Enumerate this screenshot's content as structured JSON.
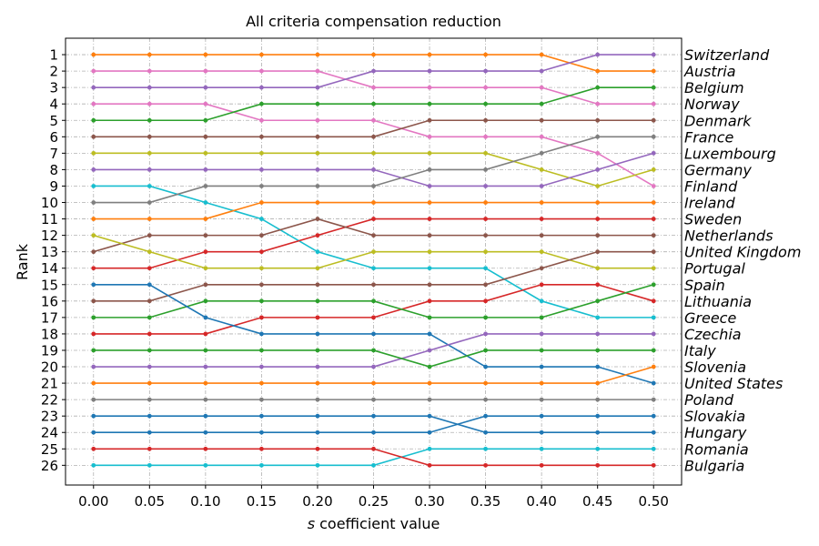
{
  "chart_data": {
    "type": "line",
    "title": "All criteria compensation reduction",
    "xlabel_italic": "s",
    "xlabel_rest": " coefficient value",
    "ylabel": "Rank",
    "x": [
      0.0,
      0.05,
      0.1,
      0.15,
      0.2,
      0.25,
      0.3,
      0.35,
      0.4,
      0.45,
      0.5
    ],
    "x_tick_labels": [
      "0.00",
      "0.05",
      "0.10",
      "0.15",
      "0.20",
      "0.25",
      "0.30",
      "0.35",
      "0.40",
      "0.45",
      "0.50"
    ],
    "y_ticks": [
      1,
      2,
      3,
      4,
      5,
      6,
      7,
      8,
      9,
      10,
      11,
      12,
      13,
      14,
      15,
      16,
      17,
      18,
      19,
      20,
      21,
      22,
      23,
      24,
      25,
      26
    ],
    "xlim": [
      -0.025,
      0.525
    ],
    "ylim": [
      27.2,
      0
    ],
    "grid": true,
    "label_ranks_at": 0.5,
    "series": [
      {
        "name": "Switzerland",
        "color": "#ff7f0e",
        "values": [
          1,
          1,
          1,
          1,
          1,
          1,
          1,
          1,
          1,
          2,
          2
        ]
      },
      {
        "name": "Austria",
        "color": "#e377c2",
        "values": [
          2,
          2,
          2,
          2,
          2,
          3,
          3,
          3,
          3,
          4,
          4
        ]
      },
      {
        "name": "Belgium",
        "color": "#9467bd",
        "values": [
          3,
          3,
          3,
          3,
          3,
          2,
          2,
          2,
          2,
          1,
          1
        ]
      },
      {
        "name": "Norway",
        "color": "#e377c2",
        "values": [
          4,
          4,
          4,
          5,
          5,
          5,
          6,
          6,
          6,
          7,
          9
        ]
      },
      {
        "name": "Denmark",
        "color": "#2ca02c",
        "values": [
          5,
          5,
          5,
          4,
          4,
          4,
          4,
          4,
          4,
          3,
          3
        ]
      },
      {
        "name": "France",
        "color": "#8c564b",
        "values": [
          6,
          6,
          6,
          6,
          6,
          6,
          5,
          5,
          5,
          5,
          5
        ]
      },
      {
        "name": "Luxembourg",
        "color": "#bcbd22",
        "values": [
          7,
          7,
          7,
          7,
          7,
          7,
          7,
          7,
          8,
          9,
          8
        ]
      },
      {
        "name": "Germany",
        "color": "#9467bd",
        "values": [
          8,
          8,
          8,
          8,
          8,
          8,
          9,
          9,
          9,
          8,
          7
        ]
      },
      {
        "name": "Finland",
        "color": "#17becf",
        "values": [
          9,
          9,
          10,
          11,
          13,
          14,
          14,
          14,
          16,
          17,
          17
        ]
      },
      {
        "name": "Ireland",
        "color": "#7f7f7f",
        "values": [
          10,
          10,
          9,
          9,
          9,
          9,
          8,
          8,
          7,
          6,
          6
        ]
      },
      {
        "name": "Sweden",
        "color": "#ff7f0e",
        "values": [
          11,
          11,
          11,
          10,
          10,
          10,
          10,
          10,
          10,
          10,
          10
        ]
      },
      {
        "name": "Netherlands",
        "color": "#d62728",
        "values": [
          14,
          14,
          13,
          13,
          12,
          11,
          11,
          11,
          11,
          11,
          11
        ]
      },
      {
        "name": "United Kingdom",
        "color": "#8c564b",
        "values": [
          13,
          12,
          12,
          12,
          11,
          12,
          12,
          12,
          12,
          12,
          12
        ]
      },
      {
        "name": "Portugal",
        "color": "#bcbd22",
        "values": [
          12,
          13,
          14,
          14,
          14,
          13,
          13,
          13,
          13,
          14,
          14
        ]
      },
      {
        "name": "Spain",
        "color": "#8c564b",
        "values": [
          16,
          16,
          15,
          15,
          15,
          15,
          15,
          15,
          14,
          13,
          13
        ]
      },
      {
        "name": "Lithuania",
        "color": "#d62728",
        "values": [
          18,
          18,
          18,
          17,
          17,
          17,
          16,
          16,
          15,
          15,
          16
        ]
      },
      {
        "name": "Greece",
        "color": "#2ca02c",
        "values": [
          17,
          17,
          16,
          16,
          16,
          16,
          17,
          17,
          17,
          16,
          15
        ]
      },
      {
        "name": "Czechia",
        "color": "#1f77b4",
        "values": [
          15,
          15,
          17,
          18,
          18,
          18,
          18,
          20,
          20,
          20,
          21
        ]
      },
      {
        "name": "Italy",
        "color": "#9467bd",
        "values": [
          20,
          20,
          20,
          20,
          20,
          20,
          19,
          18,
          18,
          18,
          18
        ]
      },
      {
        "name": "Slovenia",
        "color": "#2ca02c",
        "values": [
          19,
          19,
          19,
          19,
          19,
          19,
          20,
          19,
          19,
          19,
          19
        ]
      },
      {
        "name": "United States",
        "color": "#ff7f0e",
        "values": [
          21,
          21,
          21,
          21,
          21,
          21,
          21,
          21,
          21,
          21,
          20
        ]
      },
      {
        "name": "Poland",
        "color": "#7f7f7f",
        "values": [
          22,
          22,
          22,
          22,
          22,
          22,
          22,
          22,
          22,
          22,
          22
        ]
      },
      {
        "name": "Slovakia",
        "color": "#1f77b4",
        "values": [
          24,
          24,
          24,
          24,
          24,
          24,
          24,
          23,
          23,
          23,
          23
        ]
      },
      {
        "name": "Hungary",
        "color": "#1f77b4",
        "values": [
          23,
          23,
          23,
          23,
          23,
          23,
          23,
          24,
          24,
          24,
          24
        ]
      },
      {
        "name": "Romania",
        "color": "#17becf",
        "values": [
          26,
          26,
          26,
          26,
          26,
          26,
          25,
          25,
          25,
          25,
          25
        ]
      },
      {
        "name": "Bulgaria",
        "color": "#d62728",
        "values": [
          25,
          25,
          25,
          25,
          25,
          25,
          26,
          26,
          26,
          26,
          26
        ]
      }
    ]
  }
}
